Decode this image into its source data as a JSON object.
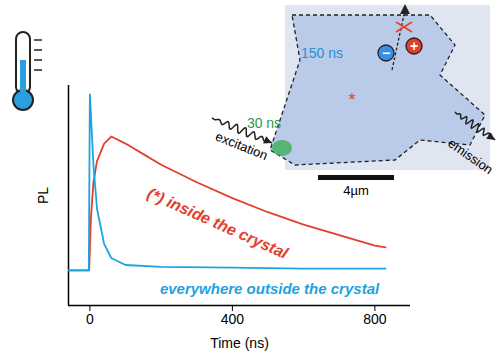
{
  "chart_data": {
    "type": "line",
    "x_label": "Time (ns)",
    "y_label": "PL",
    "xlim": [
      -60,
      900
    ],
    "xticks": [
      0,
      400,
      800
    ],
    "ylim": [
      -0.2,
      1.05
    ],
    "yticks": [],
    "tick_labels": "x",
    "series": [
      {
        "name": "(*) inside the crystal",
        "color": "#e2402b",
        "x": [
          -60,
          -2,
          3,
          10,
          20,
          40,
          60,
          100,
          150,
          200,
          300,
          400,
          500,
          600,
          700,
          800,
          830
        ],
        "values": [
          0,
          0,
          0.3,
          0.5,
          0.62,
          0.72,
          0.76,
          0.72,
          0.66,
          0.6,
          0.5,
          0.41,
          0.33,
          0.26,
          0.2,
          0.14,
          0.13
        ]
      },
      {
        "name": "everywhere outside the crystal",
        "color": "#1ba3e3",
        "x": [
          -60,
          -3,
          0,
          5,
          10,
          20,
          40,
          60,
          100,
          200,
          400,
          600,
          830
        ],
        "values": [
          0,
          0,
          1.0,
          0.8,
          0.6,
          0.35,
          0.15,
          0.07,
          0.03,
          0.02,
          0.015,
          0.01,
          0.01
        ]
      }
    ],
    "inset": {
      "lifetime_center": "150 ns",
      "lifetime_edge": "30 ns",
      "excitation": "excitation",
      "emission": "emission",
      "scale_bar": "4µm",
      "center_mark": "*",
      "minus": "−",
      "plus": "+"
    }
  }
}
